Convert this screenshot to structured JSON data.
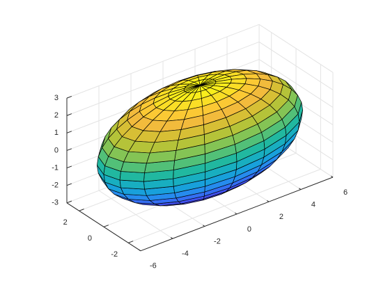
{
  "chart_data": {
    "type": "ellipsoid",
    "center": [
      0,
      0,
      0
    ],
    "radii": [
      6,
      3,
      3
    ],
    "n": 20,
    "xlim": [
      -6,
      6
    ],
    "ylim": [
      -3,
      3
    ],
    "zlim": [
      -3,
      3
    ],
    "xticks": [
      -6,
      -4,
      -2,
      0,
      2,
      4,
      6
    ],
    "yticks": [
      -2,
      0,
      2
    ],
    "zticks": [
      -3,
      -2,
      -1,
      0,
      1,
      2,
      3
    ],
    "view": [
      -37.5,
      30
    ],
    "grid": true,
    "edge_color": "#000000",
    "colormap": [
      "#3e26a8",
      "#4646f0",
      "#2a84f4",
      "#13a8d3",
      "#21b8a0",
      "#70c560",
      "#c4c230",
      "#fbba3e",
      "#f9f914"
    ]
  }
}
